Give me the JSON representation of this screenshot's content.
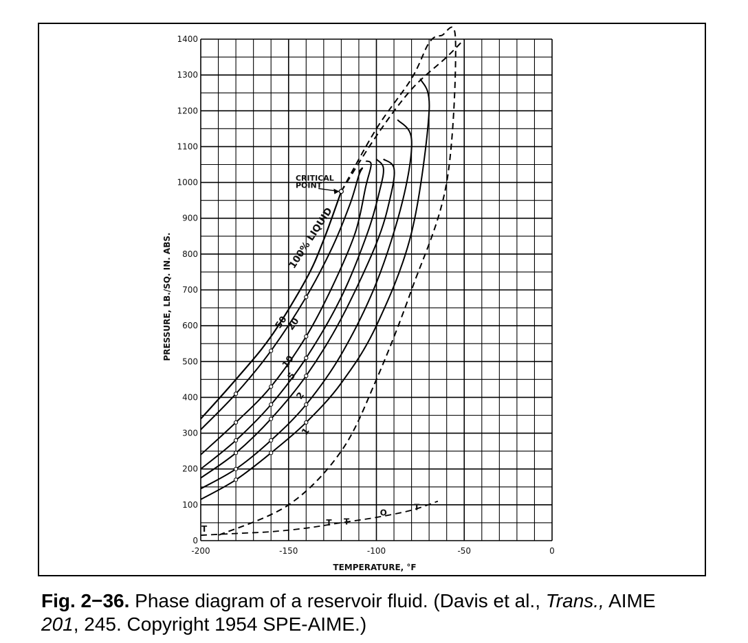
{
  "chart_data": {
    "type": "line",
    "xlabel": "TEMPERATURE, °F",
    "ylabel": "PRESSURE, LB./SQ. IN. ABS.",
    "xlim": [
      -200,
      0
    ],
    "ylim": [
      0,
      1400
    ],
    "xticks": [
      "-200",
      "-150",
      "-100",
      "-50",
      "0"
    ],
    "yticks": [
      "0",
      "100",
      "200",
      "300",
      "400",
      "500",
      "600",
      "700",
      "800",
      "900",
      "1000",
      "1100",
      "1200",
      "1300",
      "1400"
    ],
    "grid": true,
    "critical_point": {
      "label_line1": "CRITICAL",
      "label_line2": "POINT",
      "x": -120,
      "y": 975
    },
    "bubble_point_curve": {
      "name": "100% LIQUID",
      "x": [
        -200,
        -180,
        -160,
        -140,
        -130,
        -120
      ],
      "y": [
        340,
        450,
        570,
        730,
        840,
        975
      ]
    },
    "dew_point_curve": {
      "x": [
        -120,
        -100,
        -80,
        -70,
        -63,
        -55,
        -60,
        -80,
        -100,
        -120,
        -150,
        -190
      ],
      "y": [
        975,
        1150,
        1290,
        1390,
        1410,
        1400,
        1000,
        700,
        450,
        250,
        100,
        15
      ]
    },
    "extrapolated_bubble_curve": {
      "x": [
        -120,
        -100,
        -80,
        -60,
        -50
      ],
      "y": [
        975,
        1130,
        1260,
        1350,
        1400
      ]
    },
    "quality_lines": [
      {
        "label": "50",
        "x": [
          -200,
          -180,
          -160,
          -140,
          -125,
          -115,
          -110,
          -108,
          -110
        ],
        "y": [
          310,
          410,
          530,
          680,
          820,
          940,
          1020,
          1040,
          1030
        ]
      },
      {
        "label": "20",
        "x": [
          -200,
          -180,
          -160,
          -140,
          -125,
          -112,
          -106,
          -103,
          -106
        ],
        "y": [
          240,
          330,
          430,
          570,
          710,
          860,
          990,
          1050,
          1060
        ]
      },
      {
        "label": "10",
        "x": [
          -200,
          -180,
          -160,
          -140,
          -120,
          -105,
          -98,
          -96,
          -100
        ],
        "y": [
          200,
          280,
          380,
          510,
          680,
          860,
          980,
          1040,
          1065
        ]
      },
      {
        "label": "5",
        "x": [
          -200,
          -180,
          -160,
          -140,
          -120,
          -100,
          -92,
          -90,
          -96
        ],
        "y": [
          175,
          245,
          340,
          460,
          620,
          830,
          960,
          1040,
          1065
        ]
      },
      {
        "label": "2",
        "x": [
          -200,
          -180,
          -160,
          -140,
          -120,
          -100,
          -85,
          -80,
          -88
        ],
        "y": [
          145,
          200,
          280,
          380,
          520,
          720,
          950,
          1120,
          1175
        ]
      },
      {
        "label": "1",
        "x": [
          -200,
          -180,
          -160,
          -140,
          -120,
          -100,
          -80,
          -70,
          -75
        ],
        "y": [
          115,
          170,
          245,
          330,
          440,
          600,
          860,
          1200,
          1290
        ]
      }
    ],
    "triple_point_curve": {
      "x": [
        -200,
        -180,
        -160,
        -140,
        -120,
        -100,
        -80,
        -65
      ],
      "y": [
        15,
        20,
        25,
        35,
        50,
        65,
        85,
        110
      ]
    },
    "triple_point_markers": [
      {
        "label": "T",
        "x": -198,
        "y": 25
      },
      {
        "label": "T",
        "x": -127,
        "y": 42
      },
      {
        "label": "T",
        "x": -117,
        "y": 45
      },
      {
        "label": "T",
        "x": -77,
        "y": 85
      }
    ],
    "circle_marker": {
      "label": "O",
      "x": -96,
      "y": 70
    }
  },
  "caption": {
    "fig_label": "Fig. 2−36.",
    "text1": " Phase diagram of a reservoir fluid. (Davis et al., ",
    "journal": "Trans.,",
    "text2": " AIME",
    "volume": "201",
    "text3": ", 245. Copyright 1954 SPE-AIME.)"
  }
}
